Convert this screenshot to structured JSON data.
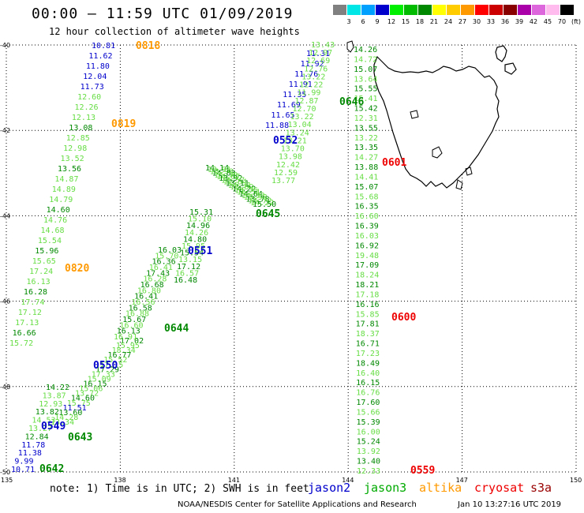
{
  "header": {
    "title": "00:00 – 11:59 UTC 01/09/2019",
    "subtitle": "12 hour collection of altimeter wave heights"
  },
  "scale": {
    "unit": "(ft)",
    "bins": [
      {
        "label": "3",
        "color": "#808080"
      },
      {
        "label": "6",
        "color": "#00e5e5"
      },
      {
        "label": "9",
        "color": "#00a0ff"
      },
      {
        "label": "12",
        "color": "#0000cc"
      },
      {
        "label": "15",
        "color": "#00ee00"
      },
      {
        "label": "18",
        "color": "#00bb00"
      },
      {
        "label": "21",
        "color": "#008800"
      },
      {
        "label": "24",
        "color": "#ffff00"
      },
      {
        "label": "27",
        "color": "#ffcc00"
      },
      {
        "label": "30",
        "color": "#ff9900"
      },
      {
        "label": "33",
        "color": "#ff0000"
      },
      {
        "label": "36",
        "color": "#cc0000"
      },
      {
        "label": "39",
        "color": "#880000"
      },
      {
        "label": "42",
        "color": "#aa00aa"
      },
      {
        "label": "45",
        "color": "#dd66dd"
      },
      {
        "label": "70",
        "color": "#ffbbee"
      },
      {
        "label": "",
        "color": "#000000"
      }
    ]
  },
  "axes": {
    "lon_ticks": [
      "135",
      "138",
      "141",
      "144",
      "147",
      "150"
    ],
    "lat_ticks": [
      "-40",
      "-42",
      "-44",
      "-46",
      "-48",
      "-50"
    ]
  },
  "colors": {
    "jason2": "#0000cc",
    "jason3_light": "#66dd44",
    "jason3_dark": "#008800",
    "altika": "#ff9900",
    "cryosat": "#ee0000",
    "s3a": "#990000"
  },
  "tracks": {
    "altika_a": {
      "color": "light",
      "values": [
        "10.81",
        "11.62",
        "11.80",
        "12.04",
        "11.73",
        "12.60",
        "12.26",
        "12.13",
        "13.08",
        "12.85",
        "12.98",
        "13.52",
        "13.56",
        "14.87",
        "14.89",
        "14.79",
        "14.60",
        "14.76",
        "14.68",
        "15.54",
        "15.96",
        "15.65",
        "17.24",
        "16.13",
        "16.28",
        "17.74",
        "17.12",
        "17.13",
        "16.66",
        "15.72"
      ]
    },
    "jason2_a": {
      "color": "light",
      "values": [
        "14.22",
        "13.87",
        "12.93",
        "13.82",
        "14.53",
        "13.27",
        "12.84",
        "11.78",
        "11.38",
        "9.99",
        "10.71"
      ]
    },
    "jason2_b": {
      "color": "light",
      "values": [
        "17.02",
        "15.95",
        "18.34",
        "16.77",
        "15.52",
        "17.15",
        "17.29",
        "17.33",
        "15.09",
        "16.15",
        "15.06",
        "13.72",
        "14.60",
        "15.75",
        "11.51",
        "13.60",
        "14.28",
        "13.34"
      ]
    },
    "jason3_a": {
      "color": "light",
      "values": [
        "16.03",
        "15.70",
        "16.36",
        "16.41",
        "17.43",
        "16.28",
        "16.68",
        "16.80",
        "16.41",
        "16.56",
        "16.58",
        "16.88",
        "15.67",
        "16.60",
        "16.13",
        "16.91"
      ]
    },
    "jason3_b": {
      "color": "light",
      "values": [
        "15.31",
        "15.10",
        "14.96",
        "14.26",
        "14.80",
        "15.95",
        "15.54",
        "13.15",
        "17.12",
        "16.57",
        "16.48"
      ]
    },
    "jason3_c": {
      "color": "light",
      "values": [
        "14.14",
        "13.91",
        "13.98",
        "14.83",
        "15.79",
        "14.67",
        "13.92",
        "13.57",
        "12.84",
        "13.11",
        "14.31",
        "13.09",
        "14.22",
        "13.75",
        "16.51",
        "14.64",
        "14.93",
        "13.98",
        "13.78",
        "13.72",
        "14.22",
        "15.50"
      ]
    },
    "jason3_d": {
      "color": "light",
      "values": [
        "11.31",
        "11.92",
        "11.76",
        "11.91",
        "11.35",
        "11.69",
        "11.65",
        "11.88"
      ]
    },
    "jason3_e": {
      "color": "light",
      "values": [
        "13.43",
        "12.97",
        "12.69",
        "12.76",
        "13.22",
        "12.22",
        "11.99",
        "12.87",
        "12.70",
        "13.22",
        "13.04",
        "13.24",
        "13.21",
        "13.70",
        "13.98",
        "12.42",
        "12.59",
        "13.77"
      ]
    },
    "jason3_f": {
      "color": "light",
      "values": [
        "14.26",
        "14.72",
        "15.07",
        "13.64",
        "15.55",
        "15.41",
        "15.42",
        "12.31",
        "13.55",
        "13.22",
        "13.35",
        "14.27",
        "13.88",
        "14.41",
        "15.07",
        "15.68",
        "16.35",
        "16.60",
        "16.39",
        "16.03",
        "16.92",
        "19.48",
        "17.09",
        "18.24",
        "18.21",
        "17.18",
        "16.16",
        "15.85",
        "17.81",
        "18.37",
        "16.71",
        "17.23",
        "18.49",
        "16.40",
        "16.15",
        "16.76",
        "17.60",
        "15.66",
        "15.39",
        "16.00",
        "15.24",
        "13.92",
        "13.40",
        "12.33"
      ]
    },
    "time_labels": [
      {
        "text": "0818",
        "sat": "altika"
      },
      {
        "text": "0819",
        "sat": "altika"
      },
      {
        "text": "0820",
        "sat": "altika"
      },
      {
        "text": "0552",
        "sat": "jason2"
      },
      {
        "text": "0551",
        "sat": "jason2"
      },
      {
        "text": "0550",
        "sat": "jason2"
      },
      {
        "text": "0549",
        "sat": "jason2"
      },
      {
        "text": "0646",
        "sat": "jason3"
      },
      {
        "text": "0645",
        "sat": "jason3"
      },
      {
        "text": "0644",
        "sat": "jason3"
      },
      {
        "text": "0643",
        "sat": "jason3"
      },
      {
        "text": "0642",
        "sat": "jason3"
      },
      {
        "text": "0601",
        "sat": "cryosat"
      },
      {
        "text": "0600",
        "sat": "cryosat"
      },
      {
        "text": "0559",
        "sat": "cryosat"
      }
    ]
  },
  "footer": {
    "note": "note: 1) Time is in UTC; 2) SWH is in feet",
    "satellites": [
      {
        "name": "jason2",
        "color": "#0000cc"
      },
      {
        "name": "jason3",
        "color": "#00aa00"
      },
      {
        "name": "altika",
        "color": "#ff9900"
      },
      {
        "name": "cryosat",
        "color": "#ee0000"
      },
      {
        "name": "s3a",
        "color": "#990000"
      }
    ],
    "credit": "NOAA/NESDIS Center for Satellite Applications and Research",
    "stamp": "Jan 10 13:27:16 UTC 2019"
  }
}
